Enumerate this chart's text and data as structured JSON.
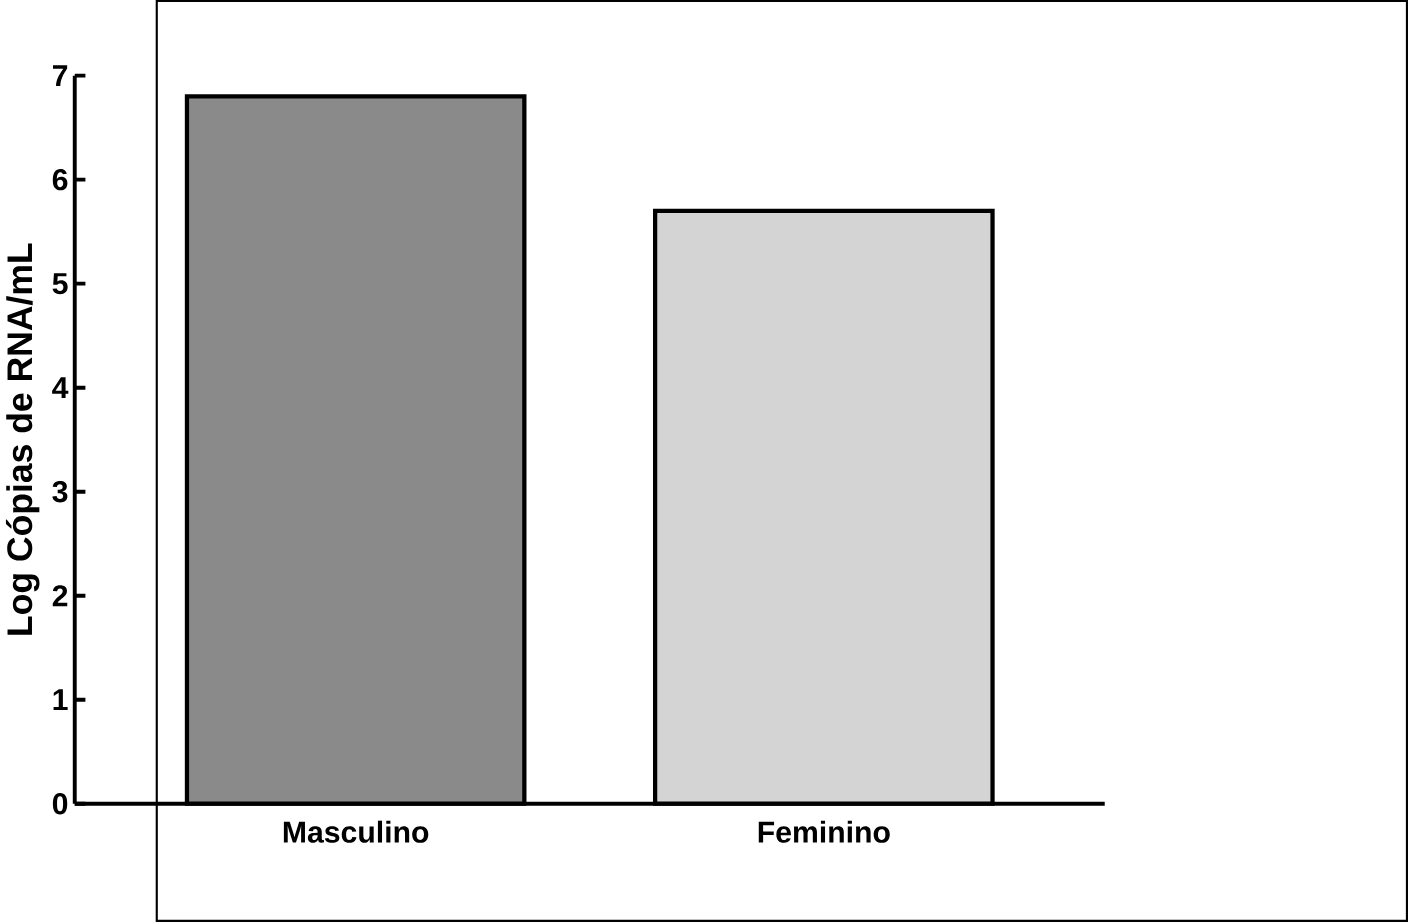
{
  "chart_data": {
    "type": "bar",
    "ylabel": "Log Cópias de RNA/mL",
    "categories": [
      "Masculino",
      "Feminino"
    ],
    "values": [
      6.8,
      5.7
    ],
    "colors": [
      "#8a8a8a",
      "#d4d4d4"
    ],
    "ylim": [
      0,
      7
    ],
    "yticks": [
      0,
      1,
      2,
      3,
      4,
      5,
      6,
      7
    ],
    "grid": false
  }
}
